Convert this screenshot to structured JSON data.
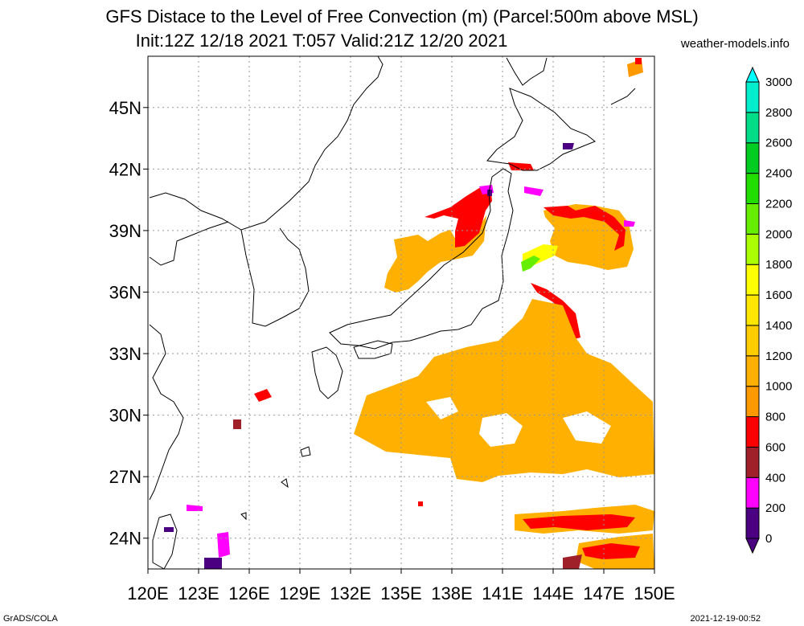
{
  "title": {
    "line1": "GFS Distace to the Level of Free Convection (m) (Parcel:500m above MSL)",
    "line2": "Init:12Z 12/18 2021 T:057 Valid:21Z 12/20 2021"
  },
  "source": "weather-models.info",
  "footer": {
    "left": "GrADS/COLA",
    "right": "2021-12-19-00:52"
  },
  "map": {
    "lon_range": [
      120,
      150
    ],
    "lat_range": [
      22.5,
      47.5
    ],
    "lon_ticks": [
      "120E",
      "123E",
      "126E",
      "129E",
      "132E",
      "135E",
      "138E",
      "141E",
      "144E",
      "147E",
      "150E"
    ],
    "lat_ticks": [
      "24N",
      "27N",
      "30N",
      "33N",
      "36N",
      "39N",
      "42N",
      "45N"
    ],
    "grid": true
  },
  "colorbar": {
    "labels": [
      "0",
      "200",
      "400",
      "600",
      "800",
      "1000",
      "1200",
      "1400",
      "1600",
      "1800",
      "2000",
      "2200",
      "2400",
      "2600",
      "2800",
      "3000"
    ],
    "colors": [
      "#4b0082",
      "#ff00ff",
      "#a0202a",
      "#ff0000",
      "#ff9900",
      "#ffb000",
      "#ffcc00",
      "#ffe600",
      "#ffff00",
      "#aaff00",
      "#66ee00",
      "#22dd00",
      "#00cc22",
      "#00dd88",
      "#00eecc",
      "#00ffff"
    ],
    "ends": "arrows"
  }
}
